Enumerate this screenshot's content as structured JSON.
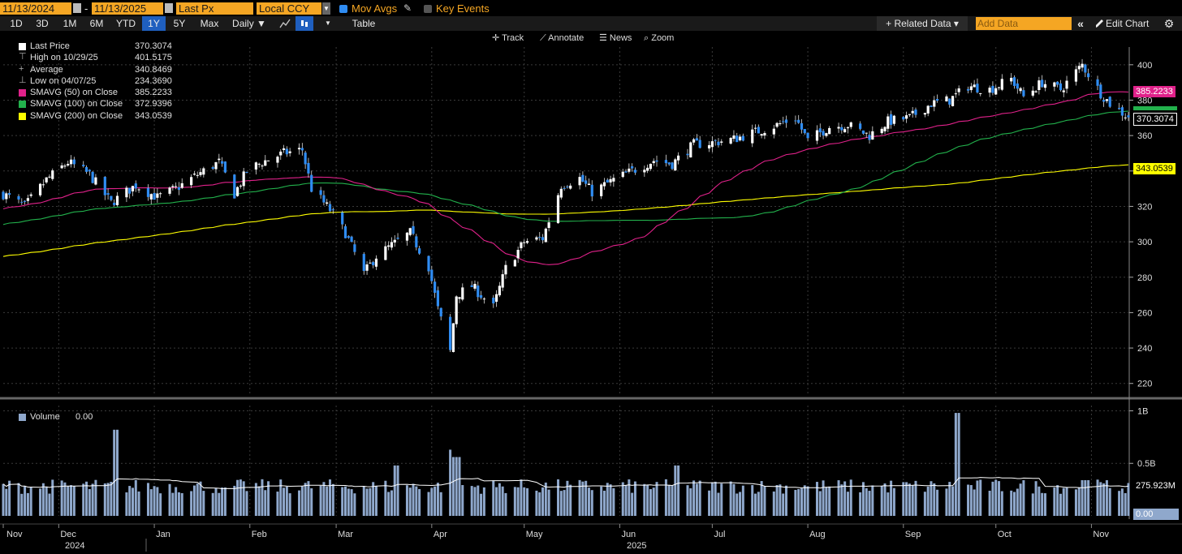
{
  "toolbar": {
    "start_date": "11/13/2024",
    "dash": "-",
    "end_date": "11/13/2025",
    "field": "Last Px",
    "currency": "Local CCY",
    "mov_avgs": "Mov Avgs",
    "key_events": "Key Events",
    "periods": [
      "1D",
      "3D",
      "1M",
      "6M",
      "YTD",
      "1Y",
      "5Y",
      "Max"
    ],
    "active_period": "1Y",
    "frequency": "Daily ▼",
    "table": "Table",
    "related_data": "+ Related Data ▾",
    "add_data_placeholder": "Add Data",
    "edit_chart": "Edit Chart",
    "collapse": "«"
  },
  "tools": {
    "track": "Track",
    "annotate": "Annotate",
    "news": "News",
    "zoom": "Zoom"
  },
  "legend": [
    {
      "name": "Last Price",
      "value": "370.3074",
      "color": "#ffffff"
    },
    {
      "name": "High on 10/29/25",
      "value": "401.5175",
      "color": ""
    },
    {
      "name": "Average",
      "value": "340.8469",
      "color": ""
    },
    {
      "name": "Low on 04/07/25",
      "value": "234.3690",
      "color": ""
    },
    {
      "name": "SMAVG (50)  on Close",
      "value": "385.2233",
      "color": "#e0218a"
    },
    {
      "name": "SMAVG (100)  on Close",
      "value": "372.9396",
      "color": "#22b14c"
    },
    {
      "name": "SMAVG (200)  on Close",
      "value": "343.0539",
      "color": "#ffff00"
    }
  ],
  "volume_legend": {
    "name": "Volume",
    "value": "0.00"
  },
  "price_tags": {
    "sma50": "385.2233",
    "last": "370.3074",
    "sma200": "343.0539"
  },
  "volume_tags": {
    "avg": "275.923M",
    "zero": "0.00"
  },
  "colors": {
    "up": "#ffffff",
    "down": "#2f8cf2",
    "sma50": "#e0218a",
    "sma100": "#22b14c",
    "sma200": "#ffff00",
    "volume": "#8fa8cc",
    "accent": "#f5a623"
  },
  "chart_data": {
    "type": "candlestick",
    "x_months": [
      "Nov",
      "Dec",
      "Jan",
      "Feb",
      "Mar",
      "Apr",
      "May",
      "Jun",
      "Jul",
      "Aug",
      "Sep",
      "Oct",
      "Nov"
    ],
    "x_years": [
      "2024",
      "2025"
    ],
    "price_ticks": [
      220,
      240,
      260,
      280,
      300,
      320,
      340,
      360,
      380,
      400
    ],
    "price_ylim": [
      213,
      410
    ],
    "volume_ticks": [
      "0.5B",
      "1B"
    ],
    "volume_ylim": [
      0,
      1.05
    ],
    "price_close_approx": [
      [
        "2024-11-13",
        327
      ],
      [
        "2024-11-20",
        320
      ],
      [
        "2024-11-27",
        335
      ],
      [
        "2024-12-04",
        345
      ],
      [
        "2024-12-11",
        338
      ],
      [
        "2024-12-18",
        322
      ],
      [
        "2024-12-26",
        332
      ],
      [
        "2025-01-02",
        325
      ],
      [
        "2025-01-08",
        330
      ],
      [
        "2025-01-15",
        338
      ],
      [
        "2025-01-22",
        345
      ],
      [
        "2025-01-27",
        327
      ],
      [
        "2025-01-31",
        340
      ],
      [
        "2025-02-05",
        345
      ],
      [
        "2025-02-12",
        350
      ],
      [
        "2025-02-18",
        352
      ],
      [
        "2025-02-21",
        330
      ],
      [
        "2025-02-27",
        318
      ],
      [
        "2025-03-04",
        305
      ],
      [
        "2025-03-10",
        282
      ],
      [
        "2025-03-14",
        292
      ],
      [
        "2025-03-19",
        298
      ],
      [
        "2025-03-25",
        305
      ],
      [
        "2025-03-31",
        286
      ],
      [
        "2025-04-03",
        262
      ],
      [
        "2025-04-07",
        238
      ],
      [
        "2025-04-09",
        270
      ],
      [
        "2025-04-14",
        275
      ],
      [
        "2025-04-21",
        263
      ],
      [
        "2025-04-25",
        285
      ],
      [
        "2025-05-01",
        300
      ],
      [
        "2025-05-07",
        302
      ],
      [
        "2025-05-13",
        332
      ],
      [
        "2025-05-19",
        336
      ],
      [
        "2025-05-23",
        328
      ],
      [
        "2025-05-30",
        335
      ],
      [
        "2025-06-05",
        340
      ],
      [
        "2025-06-12",
        346
      ],
      [
        "2025-06-18",
        344
      ],
      [
        "2025-06-25",
        355
      ],
      [
        "2025-07-01",
        356
      ],
      [
        "2025-07-08",
        358
      ],
      [
        "2025-07-15",
        362
      ],
      [
        "2025-07-22",
        366
      ],
      [
        "2025-07-28",
        370
      ],
      [
        "2025-08-01",
        357
      ],
      [
        "2025-08-08",
        365
      ],
      [
        "2025-08-14",
        366
      ],
      [
        "2025-08-21",
        360
      ],
      [
        "2025-08-27",
        368
      ],
      [
        "2025-09-03",
        370
      ],
      [
        "2025-09-10",
        378
      ],
      [
        "2025-09-16",
        380
      ],
      [
        "2025-09-22",
        388
      ],
      [
        "2025-09-29",
        386
      ],
      [
        "2025-10-06",
        392
      ],
      [
        "2025-10-10",
        382
      ],
      [
        "2025-10-16",
        390
      ],
      [
        "2025-10-22",
        386
      ],
      [
        "2025-10-29",
        400
      ],
      [
        "2025-11-04",
        384
      ],
      [
        "2025-11-07",
        378
      ],
      [
        "2025-11-13",
        370.3074
      ]
    ],
    "volume_typical": 0.28,
    "volume_spikes": [
      [
        "2024-12-20",
        0.82
      ],
      [
        "2025-01-24",
        0.27
      ],
      [
        "2025-03-21",
        0.48
      ],
      [
        "2025-04-07",
        0.63
      ],
      [
        "2025-04-09",
        0.56
      ],
      [
        "2025-06-20",
        0.48
      ],
      [
        "2025-09-19",
        0.98
      ],
      [
        "2025-10-30",
        0.34
      ]
    ]
  }
}
